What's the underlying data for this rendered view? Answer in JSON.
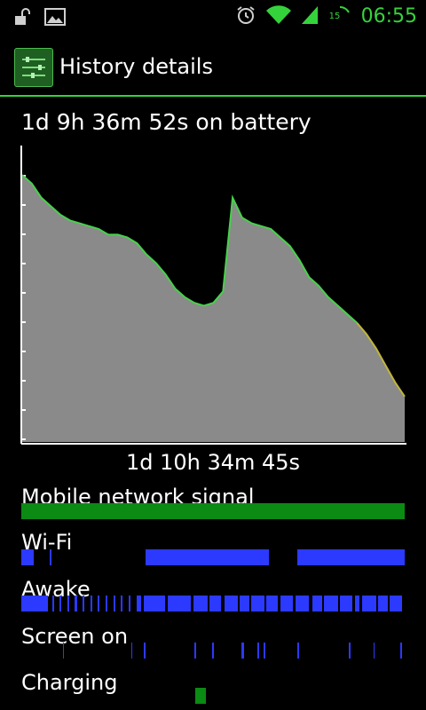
{
  "status_bar": {
    "time": "06:55",
    "notification_icons": [
      "unlock-icon",
      "image-icon"
    ],
    "system_icons": [
      "alarm-icon",
      "wifi-icon",
      "signal-icon",
      "battery-icon"
    ],
    "battery_text": "15"
  },
  "action_bar": {
    "title": "History details"
  },
  "summary": {
    "on_battery": "1d 9h 36m 52s on battery"
  },
  "chart_data": {
    "type": "area",
    "title": "",
    "x": [
      0,
      1,
      2,
      3,
      4,
      5,
      6,
      7,
      8,
      9,
      10,
      11,
      12,
      13,
      14,
      15,
      16,
      17,
      18,
      19,
      20,
      21,
      22,
      23,
      24,
      25,
      26,
      27,
      28,
      29,
      30,
      31,
      32,
      33,
      34,
      35,
      36,
      37,
      38,
      39,
      40
    ],
    "values": [
      94,
      91,
      86,
      83,
      80,
      78,
      77,
      76,
      75,
      73,
      73,
      72,
      70,
      66,
      63,
      59,
      54,
      51,
      49,
      48,
      49,
      53,
      86,
      79,
      77,
      76,
      75,
      72,
      69,
      64,
      58,
      55,
      51,
      48,
      45,
      42,
      38,
      33,
      27,
      21,
      16
    ],
    "line_colors": [
      "#47d14b",
      "#c0b63a"
    ]
  },
  "total_time": "1d 10h 34m 45s",
  "rows": [
    {
      "label": "Mobile network signal",
      "color": "#0b8a14",
      "segments": [
        [
          0,
          100
        ]
      ]
    },
    {
      "label": "Wi-Fi",
      "color": "#2c39ff",
      "segments": [
        [
          0,
          3.2
        ],
        [
          7.3,
          7.8
        ],
        [
          32.5,
          64.5
        ],
        [
          72.0,
          100
        ]
      ]
    },
    {
      "label": "Awake",
      "color": "#2c39ff",
      "segments": [
        [
          0,
          7.0
        ],
        [
          8,
          8.6
        ],
        [
          10,
          10.5
        ],
        [
          12,
          12.5
        ],
        [
          14,
          14.6
        ],
        [
          16,
          16.4
        ],
        [
          18,
          18.5
        ],
        [
          20,
          20.4
        ],
        [
          22,
          22.5
        ],
        [
          24,
          24.6
        ],
        [
          26,
          26.4
        ],
        [
          28,
          28.5
        ],
        [
          30,
          31.2
        ],
        [
          32,
          37.6
        ],
        [
          38.2,
          44.2
        ],
        [
          45,
          48.6
        ],
        [
          49,
          52.2
        ],
        [
          53,
          56.4
        ],
        [
          57,
          59.5
        ],
        [
          60,
          63.4
        ],
        [
          64,
          67.0
        ],
        [
          67.5,
          70.8
        ],
        [
          71.5,
          75.0
        ],
        [
          76,
          78.5
        ],
        [
          79,
          82.6
        ],
        [
          83,
          86.4
        ],
        [
          87,
          88.2
        ],
        [
          89,
          92.6
        ],
        [
          93,
          95.5
        ],
        [
          96,
          99.4
        ]
      ]
    },
    {
      "label": "Screen on",
      "color": "#2c39ff",
      "segments": [
        [
          10.8,
          11.2
        ],
        [
          28.6,
          29.0
        ],
        [
          32.0,
          32.4
        ],
        [
          45.2,
          45.6
        ],
        [
          49.8,
          50.2
        ],
        [
          57.5,
          58.0
        ],
        [
          61.5,
          62.0
        ],
        [
          63.2,
          63.6
        ],
        [
          72.0,
          72.5
        ],
        [
          85.4,
          85.8
        ],
        [
          91.8,
          92.2
        ],
        [
          98.8,
          99.2
        ]
      ]
    },
    {
      "label": "Charging",
      "color": "#0b8a14",
      "segments": [
        [
          45.3,
          48.1
        ]
      ]
    }
  ]
}
